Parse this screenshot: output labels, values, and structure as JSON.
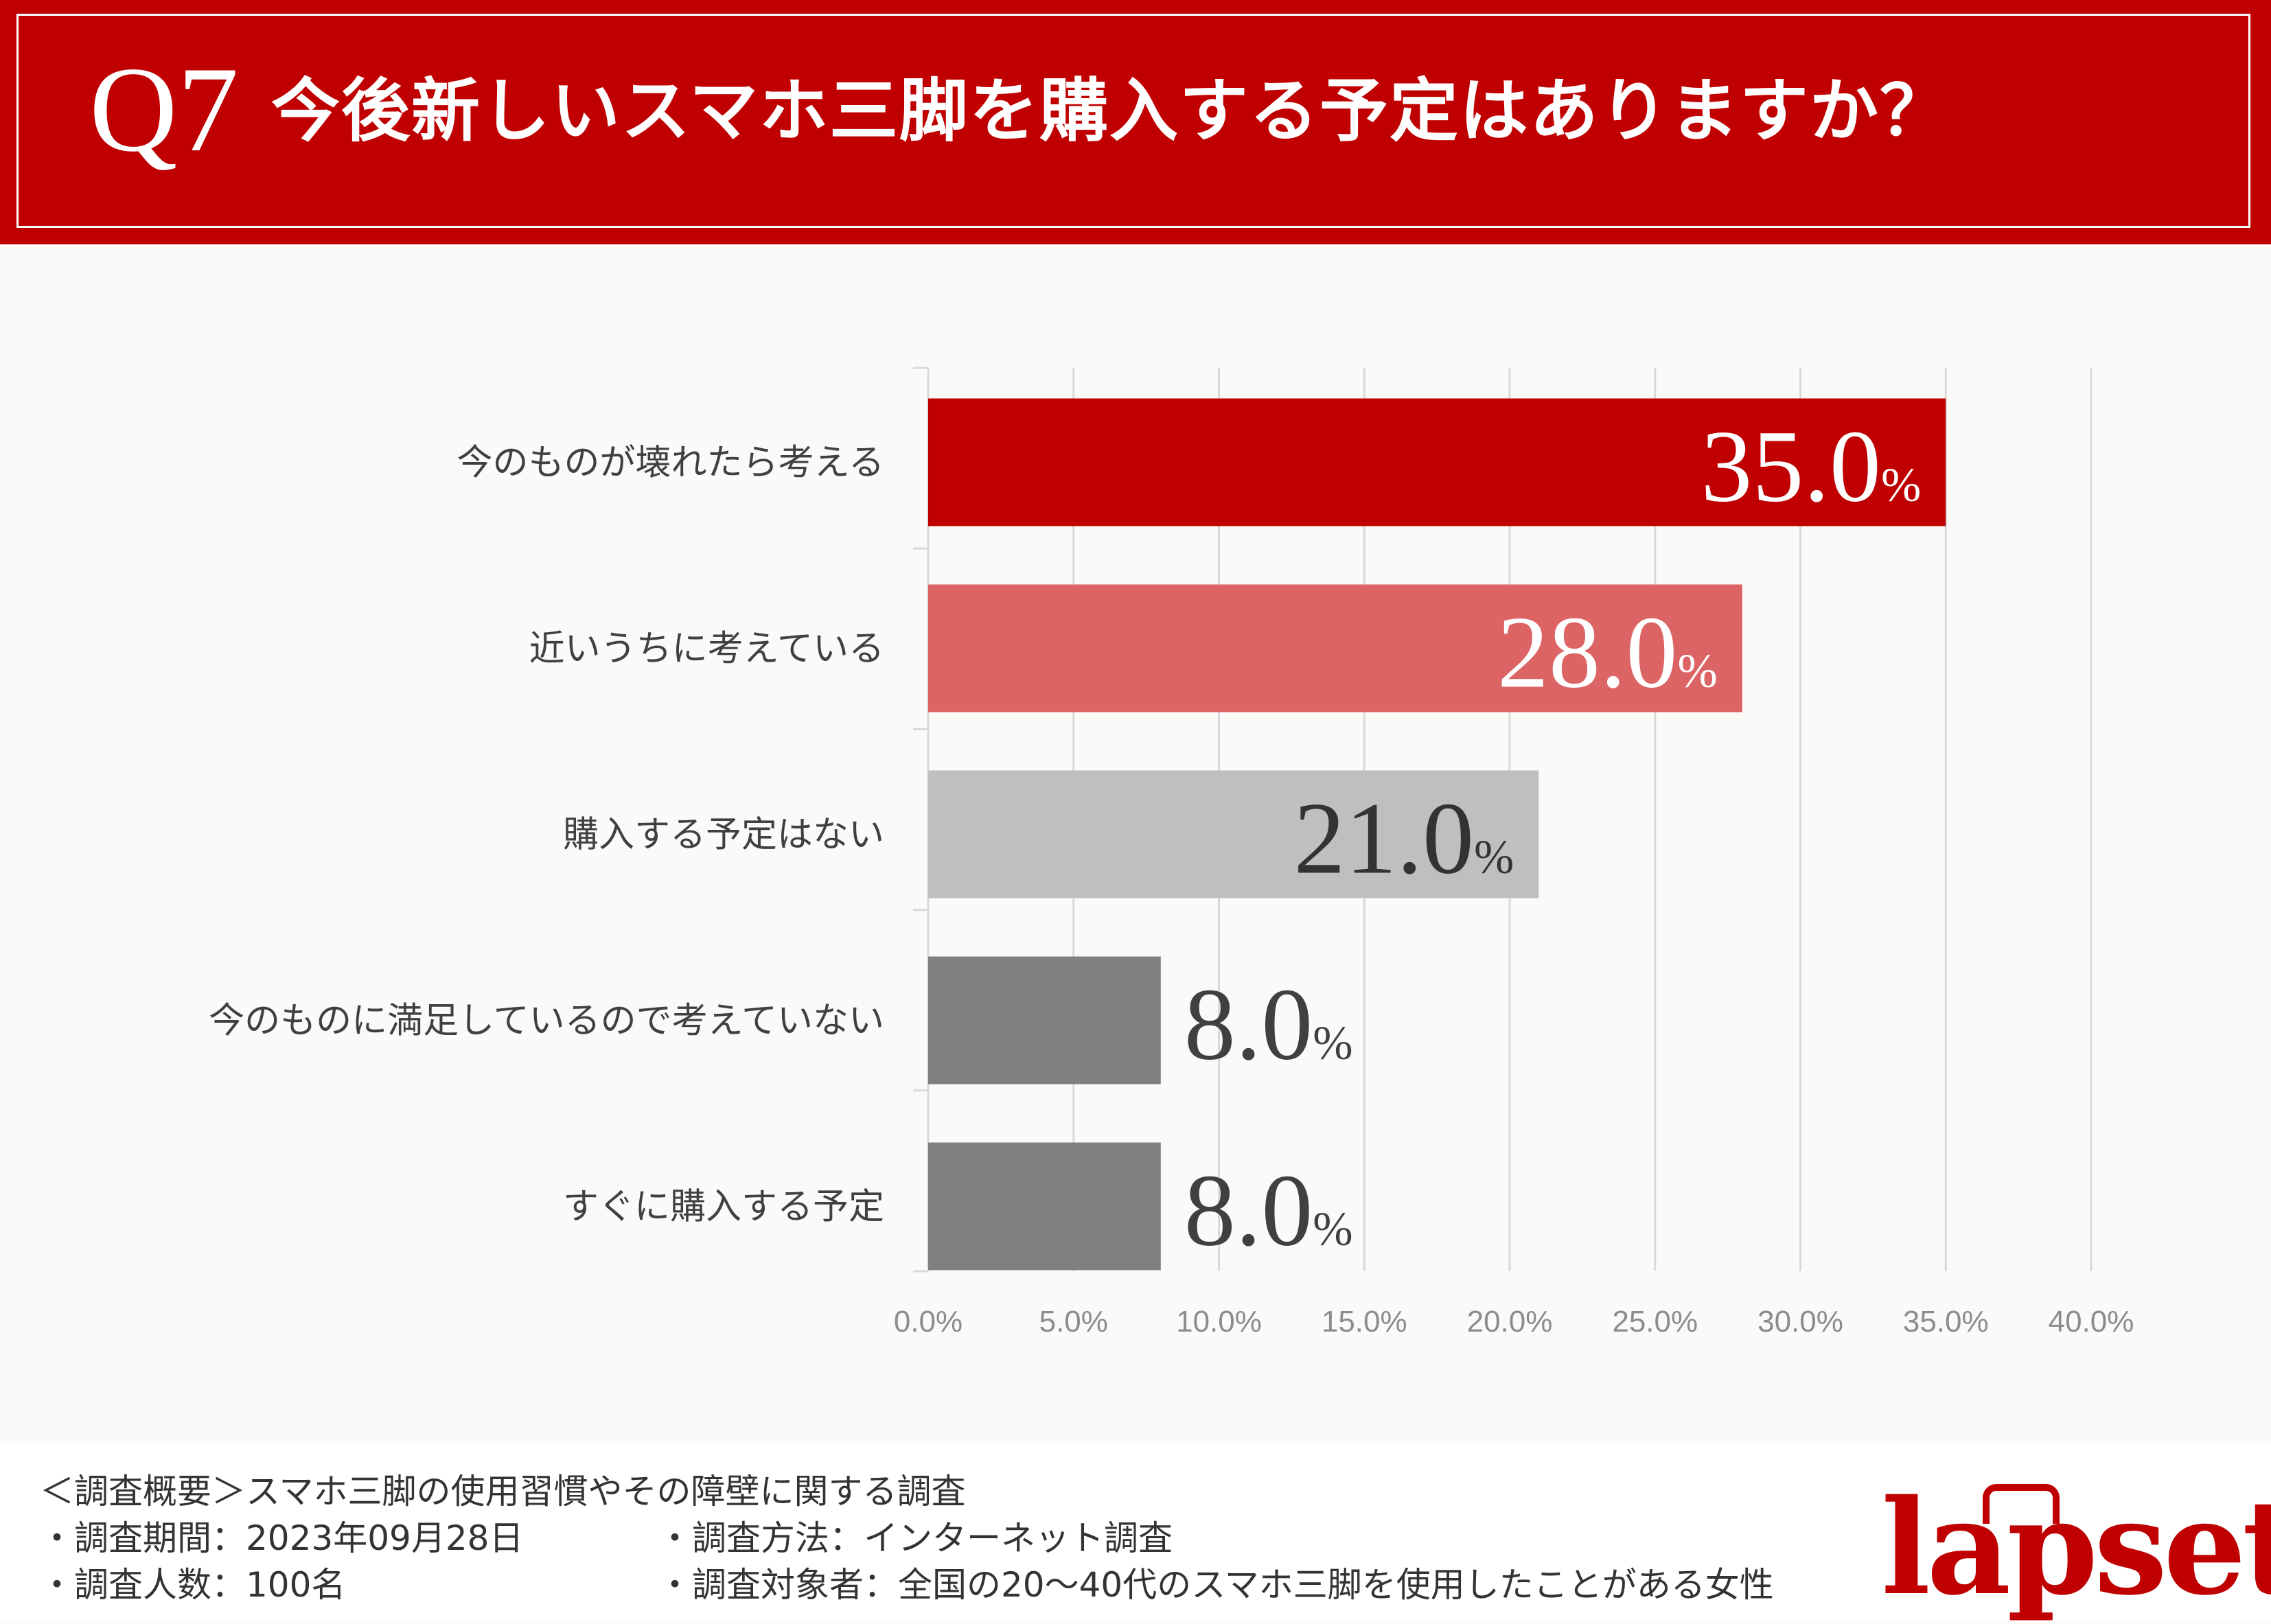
{
  "header": {
    "q_number": "Q7",
    "question": "今後新しいスマホ三脚を購入する予定はありますか？"
  },
  "chart_data": {
    "type": "bar",
    "orientation": "horizontal",
    "categories": [
      "今のものが壊れたら考える",
      "近いうちに考えている",
      "購入する予定はない",
      "今のものに満足しているので考えていない",
      "すぐに購入する予定"
    ],
    "values": [
      35.0,
      28.0,
      21.0,
      8.0,
      8.0
    ],
    "value_labels": [
      "35.0",
      "28.0",
      "21.0",
      "8.0",
      "8.0"
    ],
    "value_suffix": "%",
    "bar_colors": [
      "#c00000",
      "#dc6464",
      "#bfbfbf",
      "#808080",
      "#808080"
    ],
    "label_colors": [
      "#ffffff",
      "#ffffff",
      "#333333",
      "#404040",
      "#404040"
    ],
    "xlim": [
      0,
      40
    ],
    "x_ticks": [
      "0.0%",
      "5.0%",
      "10.0%",
      "15.0%",
      "20.0%",
      "25.0%",
      "30.0%",
      "35.0%",
      "40.0%"
    ],
    "grid": true,
    "title": "",
    "xlabel": "",
    "ylabel": ""
  },
  "footer": {
    "summary": "＜調査概要＞スマホ三脚の使用習慣やその障壁に関する調査",
    "period": "・調査期間：2023年09月28日",
    "method": "・調査方法：インターネット調査",
    "count": "・調査人数：100名",
    "target": "・調査対象者：全国の20〜40代のスマホ三脚を使用したことがある女性"
  },
  "logo": {
    "text": "lapset"
  },
  "colors": {
    "header_bg": "#c00000",
    "page_bg": "#fbfaf8",
    "grid": "#d9d9d9",
    "tick": "#8c8c8c"
  }
}
